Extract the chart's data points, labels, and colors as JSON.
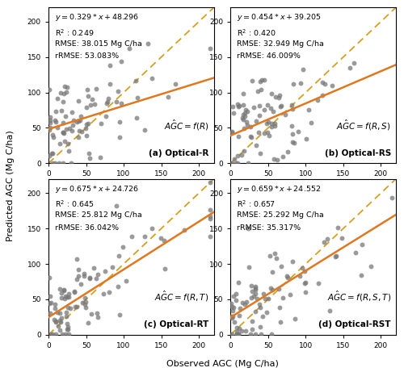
{
  "subplots": [
    {
      "label": "(a) Optical-R",
      "formula": "$A\\hat{G}C = f(R)$",
      "eq_display": "$y=0.329 * x+48.296$",
      "r2": "R$^2$ : 0.249",
      "rmse": "RMSE: 38.015 Mg C/ha",
      "rrmse": "rRMSE: 53.083%",
      "slope": 0.329,
      "intercept": 48.296,
      "xmin": 0,
      "xmax": 220,
      "ymin": 0,
      "ymax": 220
    },
    {
      "label": "(b) Optical-RS",
      "formula": "$A\\hat{G}C = f(R,S)$",
      "eq_display": "$y=0.454 * x+39.205$",
      "r2": "R$^2$ : 0.420",
      "rmse": "RMSE: 32.949 Mg C/ha",
      "rrmse": "rRMSE: 46.009%",
      "slope": 0.454,
      "intercept": 39.205,
      "xmin": 0,
      "xmax": 220,
      "ymin": 0,
      "ymax": 220
    },
    {
      "label": "(c) Optical-RT",
      "formula": "$A\\hat{G}C = f(R,T)$",
      "eq_display": "$y=0.675 * x+24.726$",
      "r2": "R$^2$ : 0.645",
      "rmse": "RMSE: 25.812 Mg C/ha",
      "rrmse": "rRMSE: 36.042%",
      "slope": 0.675,
      "intercept": 24.726,
      "xmin": 0,
      "xmax": 220,
      "ymin": 0,
      "ymax": 220
    },
    {
      "label": "(d) Optical-RST",
      "formula": "$A\\hat{G}C = f(R,S,T)$",
      "eq_display": "$y=0.659 * x+24.552$",
      "r2": "R$^2$ : 0.657",
      "rmse": "RMSE: 25.292 Mg C/ha",
      "rrmse": "rRMSE: 35.317%",
      "slope": 0.659,
      "intercept": 24.552,
      "xmin": 0,
      "xmax": 220,
      "ymin": 0,
      "ymax": 220
    }
  ],
  "scatter_color": "#787878",
  "scatter_alpha": 0.75,
  "scatter_size": 18,
  "fit_line_color": "#E07820",
  "diag_line_color": "#D4A020",
  "xlabel": "Observed AGC (Mg C/ha)",
  "ylabel": "Predicted AGC (Mg C/ha)",
  "tick_vals": [
    0,
    50,
    100,
    150,
    200
  ],
  "bg_color": "#ffffff"
}
